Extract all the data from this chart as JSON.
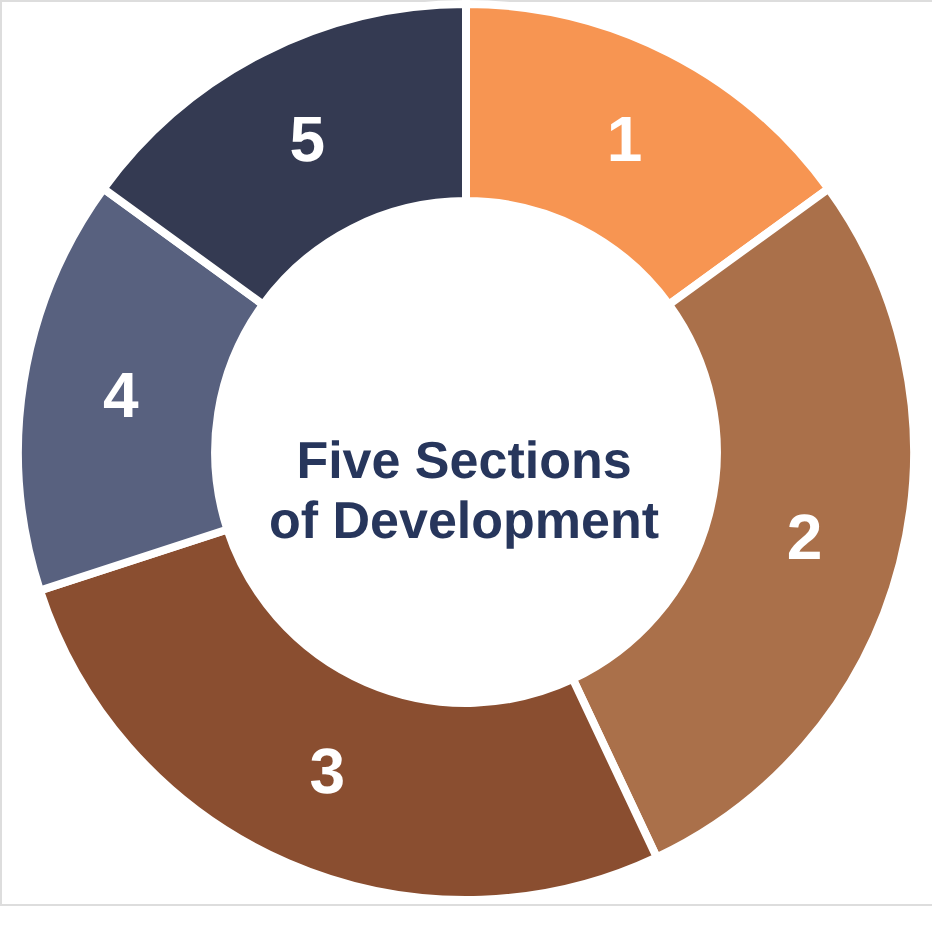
{
  "chart_data": {
    "type": "donut",
    "title": "Five Sections of Development",
    "categories": [
      "1",
      "2",
      "3",
      "4",
      "5"
    ],
    "values": [
      15,
      28,
      27,
      15,
      15
    ],
    "colors": [
      "#f79552",
      "#aa704a",
      "#8a4e30",
      "#58617f",
      "#343a52"
    ]
  }
}
